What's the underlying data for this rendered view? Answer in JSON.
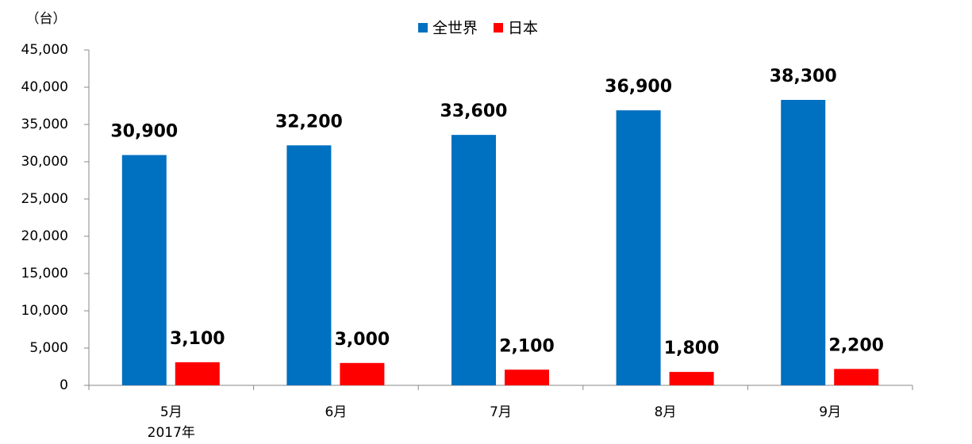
{
  "chart_data": {
    "type": "bar",
    "unit_label": "（台）",
    "categories": [
      "5月",
      "6月",
      "7月",
      "8月",
      "9月"
    ],
    "period_label": "2017年",
    "series": [
      {
        "name": "全世界",
        "color": "#0070c0",
        "values": [
          30900,
          32200,
          33600,
          36900,
          38300
        ],
        "value_labels": [
          "30,900",
          "32,200",
          "33,600",
          "36,900",
          "38,300"
        ]
      },
      {
        "name": "日本",
        "color": "#ff0000",
        "values": [
          3100,
          3000,
          2100,
          1800,
          2200
        ],
        "value_labels": [
          "3,100",
          "3,000",
          "2,100",
          "1,800",
          "2,200"
        ]
      }
    ],
    "ylim": [
      0,
      45000
    ],
    "yticks": [
      0,
      {
        "value": 5000,
        "label": "5,000"
      },
      {
        "value": 10000,
        "label": "10,000"
      },
      {
        "value": 15000,
        "label": "15,000"
      },
      {
        "value": 20000,
        "label": "20,000"
      },
      {
        "value": 25000,
        "label": "25,000"
      },
      {
        "value": 30000,
        "label": "30,000"
      },
      {
        "value": 35000,
        "label": "35,000"
      },
      {
        "value": 40000,
        "label": "40,000"
      },
      {
        "value": 45000,
        "label": "45,000"
      }
    ],
    "grid": false
  }
}
